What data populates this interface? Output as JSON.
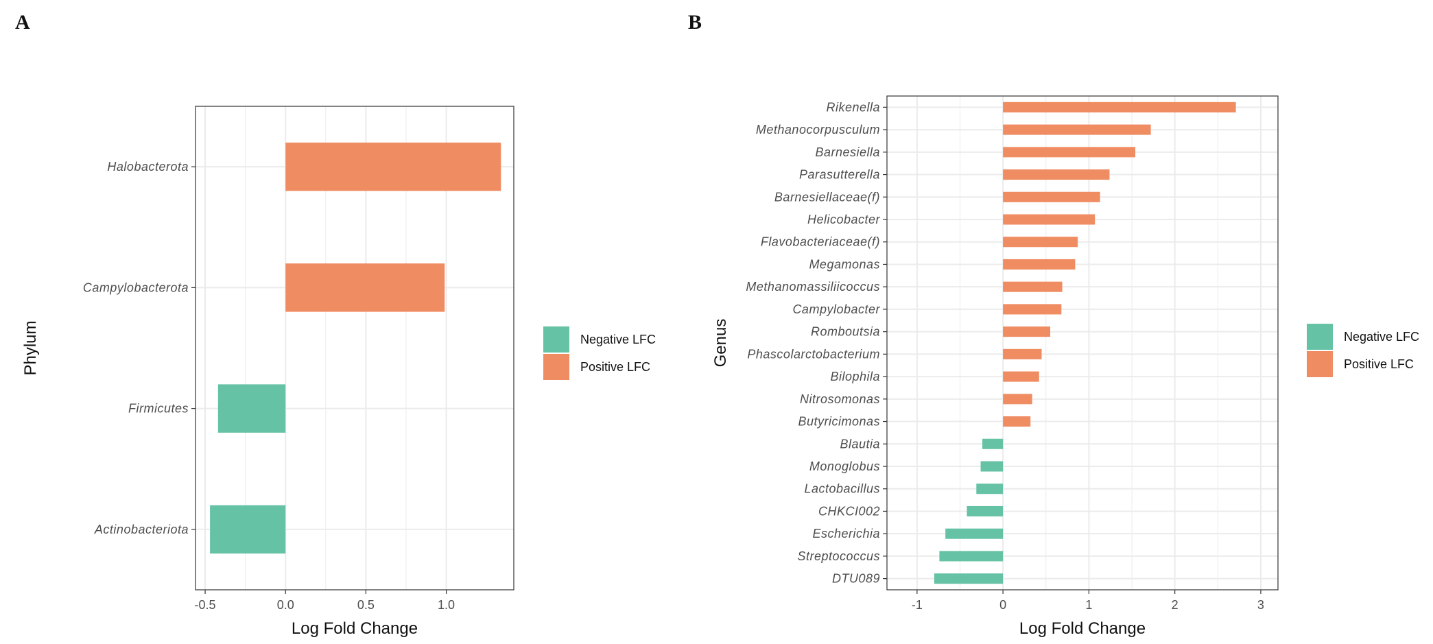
{
  "colors": {
    "negative": "#66c2a5",
    "positive": "#f08c62",
    "grid": "#ebebeb",
    "panel_border": "#333333"
  },
  "chart_data": [
    {
      "panel_label": "A",
      "type": "bar",
      "orientation": "horizontal",
      "title": "",
      "xlabel": "Log Fold Change",
      "ylabel": "Phylum",
      "xlim": [
        -0.56,
        1.42
      ],
      "xticks": [
        -0.5,
        0.0,
        0.5,
        1.0
      ],
      "xtick_labels": [
        "-0.5",
        "0.0",
        "0.5",
        "1.0"
      ],
      "grid": true,
      "legend": {
        "position": "right",
        "entries": [
          "Negative LFC",
          "Positive LFC"
        ]
      },
      "categories": [
        "Halobacterota",
        "Campylobacterota",
        "Firmicutes",
        "Actinobacteriota"
      ],
      "values": [
        1.34,
        0.99,
        -0.42,
        -0.47
      ]
    },
    {
      "panel_label": "B",
      "type": "bar",
      "orientation": "horizontal",
      "title": "",
      "xlabel": "Log Fold Change",
      "ylabel": "Genus",
      "xlim": [
        -1.35,
        3.2
      ],
      "xticks": [
        -1,
        0,
        1,
        2,
        3
      ],
      "xtick_labels": [
        "-1",
        "0",
        "1",
        "2",
        "3"
      ],
      "grid": true,
      "legend": {
        "position": "right",
        "entries": [
          "Negative LFC",
          "Positive LFC"
        ]
      },
      "categories": [
        "Rikenella",
        "Methanocorpusculum",
        "Barnesiella",
        "Parasutterella",
        "Barnesiellaceae(f)",
        "Helicobacter",
        "Flavobacteriaceae(f)",
        "Megamonas",
        "Methanomassiliicoccus",
        "Campylobacter",
        "Romboutsia",
        "Phascolarctobacterium",
        "Bilophila",
        "Nitrosomonas",
        "Butyricimonas",
        "Blautia",
        "Monoglobus",
        "Lactobacillus",
        "CHKCI002",
        "Escherichia",
        "Streptococcus",
        "DTU089"
      ],
      "values": [
        2.71,
        1.72,
        1.54,
        1.24,
        1.13,
        1.07,
        0.87,
        0.84,
        0.69,
        0.68,
        0.55,
        0.45,
        0.42,
        0.34,
        0.32,
        -0.24,
        -0.26,
        -0.31,
        -0.42,
        -0.67,
        -0.74,
        -0.8
      ]
    }
  ]
}
